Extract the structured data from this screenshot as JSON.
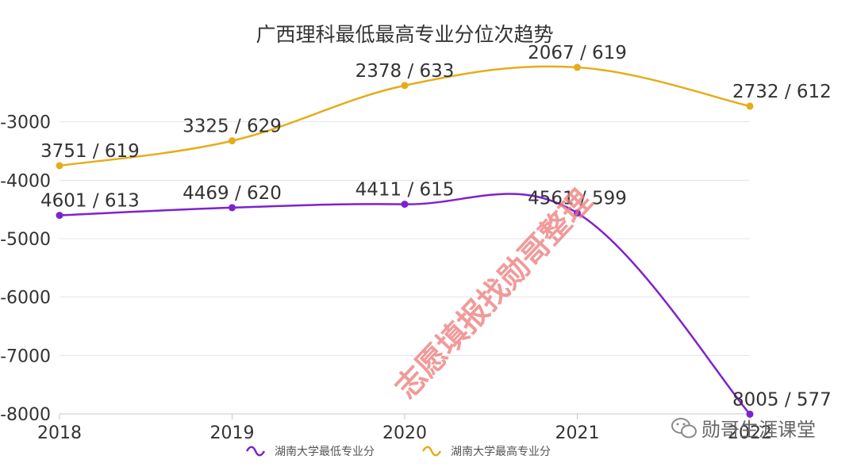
{
  "chart_data": {
    "type": "line",
    "title": "广西理科最低最高专业分位次趋势",
    "categories": [
      "2018",
      "2019",
      "2020",
      "2021",
      "2022"
    ],
    "x_tick_labels": [
      "2018",
      "2019",
      "2020",
      "2021",
      "2022"
    ],
    "y_tick_labels": [
      "-3000",
      "-4000",
      "-5000",
      "-6000",
      "-7000",
      "-8000"
    ],
    "y_ticks": [
      -3000,
      -4000,
      -5000,
      -6000,
      -7000,
      -8000
    ],
    "ylim": [
      -8000,
      -2000
    ],
    "xlabel": "",
    "ylabel": "",
    "grid": true,
    "smooth": true,
    "legend_position": "bottom-center",
    "series": [
      {
        "name": "湖南大学最低专业分",
        "color": "#7e22ce",
        "values": [
          -4601,
          -4469,
          -4411,
          -4561,
          -8005
        ],
        "labels": [
          "4601 / 613",
          "4469 / 620",
          "4411 / 615",
          "4561 / 599",
          "8005 / 577"
        ]
      },
      {
        "name": "湖南大学最高专业分",
        "color": "#e6ac1a",
        "values": [
          -3751,
          -3325,
          -2378,
          -2067,
          -2732
        ],
        "labels": [
          "3751 / 619",
          "3325 / 629",
          "2378 / 633",
          "2067 / 619",
          "2732 / 612"
        ]
      }
    ]
  },
  "watermark": "志愿填报找勋哥整理",
  "badge": {
    "icon": "wechat-icon",
    "text": "勋哥生涯课堂"
  }
}
